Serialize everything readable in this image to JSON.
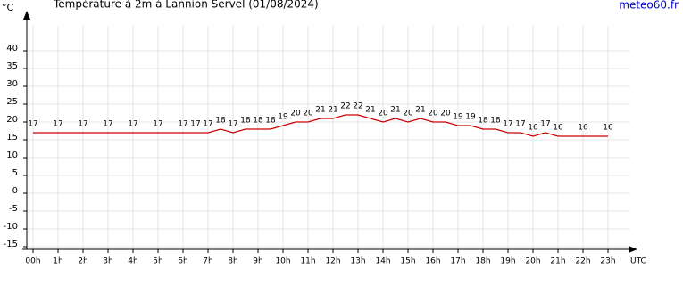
{
  "chart_data": {
    "type": "line",
    "title": "Température à 2m à Lannion Servel (01/08/2024)",
    "y_unit": "°C",
    "x_unit": "UTC",
    "source": "meteo60.fr",
    "x": [
      0,
      1,
      2,
      3,
      4,
      5,
      6,
      6.5,
      7,
      7.5,
      8,
      8.5,
      9,
      9.5,
      10,
      10.5,
      11,
      11.5,
      12,
      12.5,
      13,
      13.5,
      14,
      14.5,
      15,
      15.5,
      16,
      16.5,
      17,
      17.5,
      18,
      18.5,
      19,
      19.5,
      20,
      20.5,
      21,
      22,
      23
    ],
    "series": [
      {
        "name": "Température",
        "color": "#cc0000",
        "values": [
          17,
          17,
          17,
          17,
          17,
          17,
          17,
          17,
          17,
          18,
          17,
          18,
          18,
          18,
          19,
          20,
          20,
          21,
          21,
          22,
          22,
          21,
          20,
          21,
          20,
          21,
          20,
          20,
          19,
          19,
          18,
          18,
          17,
          17,
          16,
          17,
          16,
          16,
          16
        ]
      }
    ],
    "xlim": [
      -0.25,
      24
    ],
    "xticks": [
      {
        "value": 0,
        "label": "00h"
      },
      {
        "value": 1,
        "label": "1h"
      },
      {
        "value": 2,
        "label": "2h"
      },
      {
        "value": 3,
        "label": "3h"
      },
      {
        "value": 4,
        "label": "4h"
      },
      {
        "value": 5,
        "label": "5h"
      },
      {
        "value": 6,
        "label": "6h"
      },
      {
        "value": 7,
        "label": "7h"
      },
      {
        "value": 8,
        "label": "8h"
      },
      {
        "value": 9,
        "label": "9h"
      },
      {
        "value": 10,
        "label": "10h"
      },
      {
        "value": 11,
        "label": "11h"
      },
      {
        "value": 12,
        "label": "12h"
      },
      {
        "value": 13,
        "label": "13h"
      },
      {
        "value": 14,
        "label": "14h"
      },
      {
        "value": 15,
        "label": "15h"
      },
      {
        "value": 16,
        "label": "16h"
      },
      {
        "value": 17,
        "label": "17h"
      },
      {
        "value": 18,
        "label": "18h"
      },
      {
        "value": 19,
        "label": "19h"
      },
      {
        "value": 20,
        "label": "20h"
      },
      {
        "value": 21,
        "label": "21h"
      },
      {
        "value": 22,
        "label": "22h"
      },
      {
        "value": 23,
        "label": "23h"
      }
    ],
    "ylim": [
      -15.75,
      47
    ],
    "yticks": [
      -15,
      -10,
      -5,
      0,
      5,
      10,
      15,
      20,
      25,
      30,
      35,
      40
    ],
    "grid": true
  }
}
